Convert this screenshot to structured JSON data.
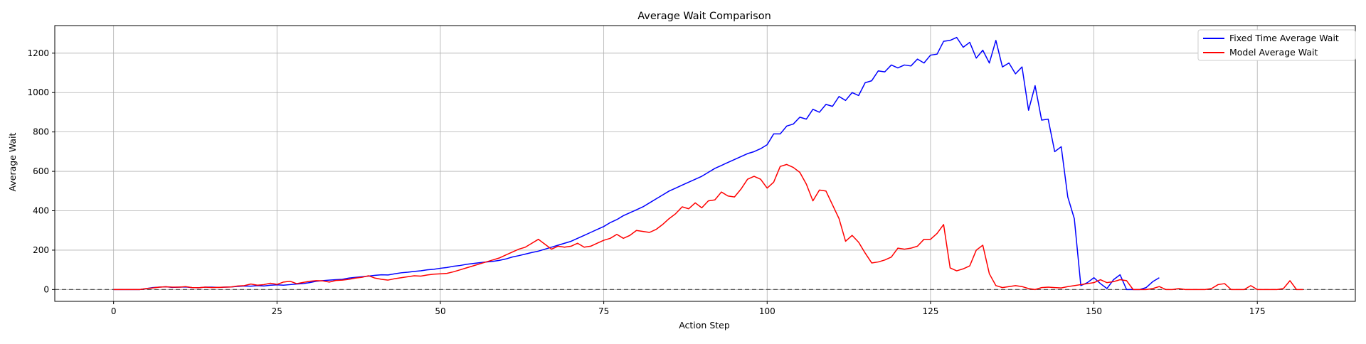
{
  "chart_data": {
    "type": "line",
    "title": "Average Wait Comparison",
    "xlabel": "Action Step",
    "ylabel": "Average Wait",
    "xlim": [
      -9,
      190
    ],
    "ylim": [
      -60,
      1340
    ],
    "xticks": [
      0,
      25,
      50,
      75,
      100,
      125,
      150,
      175
    ],
    "yticks": [
      0,
      200,
      400,
      600,
      800,
      1000,
      1200
    ],
    "grid": true,
    "legend_position": "top-right",
    "reference_line": {
      "y": 0,
      "style": "dashed",
      "color": "#555555"
    },
    "series": [
      {
        "name": "Fixed Time Average Wait",
        "color": "#0000ff",
        "x_start": 0,
        "values": [
          0,
          0,
          0,
          0,
          0,
          5,
          10,
          12,
          14,
          11,
          12,
          13,
          10,
          9,
          12,
          12,
          11,
          12,
          13,
          16,
          18,
          17,
          20,
          18,
          22,
          24,
          22,
          25,
          28,
          30,
          35,
          42,
          45,
          48,
          50,
          52,
          58,
          62,
          65,
          68,
          72,
          75,
          74,
          80,
          85,
          88,
          92,
          95,
          100,
          103,
          108,
          112,
          118,
          122,
          128,
          132,
          136,
          140,
          143,
          148,
          155,
          165,
          172,
          180,
          188,
          195,
          205,
          215,
          225,
          235,
          245,
          260,
          275,
          290,
          305,
          320,
          340,
          355,
          375,
          390,
          405,
          420,
          440,
          460,
          480,
          500,
          515,
          530,
          545,
          560,
          575,
          595,
          615,
          630,
          645,
          660,
          675,
          690,
          700,
          715,
          735,
          790,
          790,
          830,
          840,
          875,
          865,
          915,
          900,
          940,
          930,
          980,
          960,
          1000,
          985,
          1050,
          1060,
          1110,
          1105,
          1140,
          1125,
          1140,
          1135,
          1170,
          1150,
          1190,
          1195,
          1260,
          1265,
          1280,
          1230,
          1255,
          1175,
          1215,
          1150,
          1265,
          1130,
          1150,
          1095,
          1130,
          910,
          1035,
          860,
          865,
          700,
          725,
          470,
          360,
          20,
          35,
          60,
          30,
          5,
          50,
          75,
          0,
          0,
          0,
          10,
          40,
          60
        ]
      },
      {
        "name": "Model Average Wait",
        "color": "#ff0000",
        "x_start": 0,
        "values": [
          0,
          0,
          0,
          0,
          0,
          5,
          8,
          12,
          14,
          12,
          12,
          15,
          10,
          9,
          12,
          10,
          11,
          12,
          13,
          18,
          20,
          28,
          22,
          25,
          32,
          26,
          38,
          42,
          30,
          36,
          42,
          45,
          44,
          38,
          46,
          48,
          52,
          58,
          62,
          70,
          58,
          52,
          48,
          55,
          60,
          65,
          70,
          68,
          74,
          78,
          80,
          82,
          90,
          100,
          110,
          120,
          130,
          140,
          150,
          160,
          175,
          190,
          205,
          215,
          235,
          255,
          230,
          205,
          220,
          215,
          220,
          235,
          215,
          220,
          235,
          250,
          260,
          280,
          260,
          275,
          300,
          295,
          290,
          305,
          330,
          360,
          385,
          420,
          410,
          440,
          415,
          450,
          455,
          495,
          475,
          470,
          510,
          560,
          575,
          560,
          515,
          545,
          625,
          635,
          620,
          595,
          535,
          450,
          505,
          500,
          430,
          360,
          245,
          275,
          240,
          185,
          135,
          140,
          150,
          165,
          210,
          205,
          210,
          220,
          255,
          255,
          285,
          330,
          110,
          95,
          105,
          120,
          200,
          225,
          80,
          20,
          10,
          15,
          20,
          15,
          5,
          0,
          10,
          12,
          10,
          8,
          15,
          20,
          25,
          30,
          35,
          50,
          35,
          40,
          50,
          45,
          0,
          0,
          0,
          5,
          15,
          0,
          0,
          5,
          0,
          0,
          0,
          0,
          5,
          25,
          30,
          0,
          0,
          0,
          20,
          0,
          0,
          0,
          0,
          5,
          45,
          0,
          0
        ]
      }
    ]
  }
}
